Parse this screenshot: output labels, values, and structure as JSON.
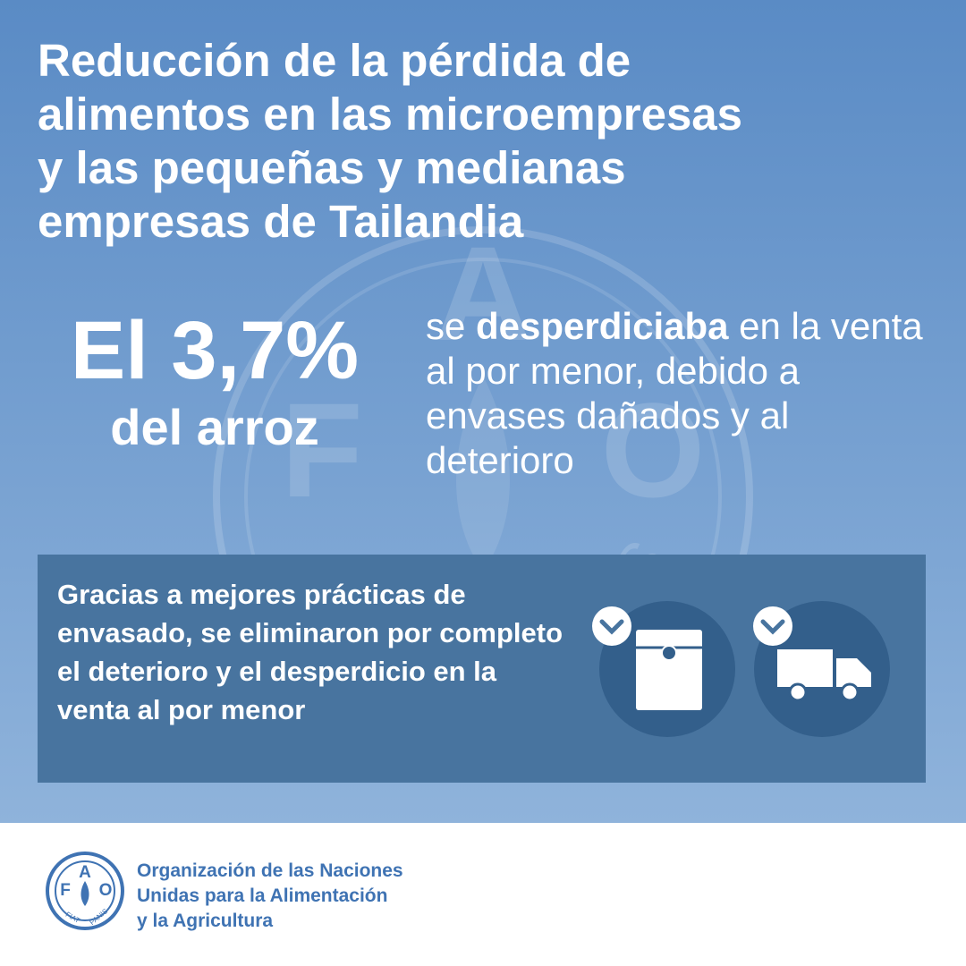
{
  "header": {
    "title_lines": [
      "Reducción de la pérdida de",
      "alimentos en las microempresas",
      "y las pequeñas y medianas",
      "empresas de Tailandia"
    ]
  },
  "stat": {
    "figure": "El 3,7%",
    "subject": "del arroz"
  },
  "description": {
    "before": "se",
    "bold": "desperdiciaba",
    "after": "en la venta al por menor, debido a envases dañados y al deterioro"
  },
  "result": {
    "text": "Gracias a mejores prácticas de envasado, se eliminaron por completo el deterioro y el desperdicio en la venta al por menor"
  },
  "logo": {
    "letters": [
      "F",
      "A",
      "O"
    ],
    "motto": [
      "FIAT",
      "PANIS"
    ]
  },
  "footer": {
    "organization_lines": [
      "Organización de las Naciones",
      "Unidas para la Alimentación",
      "y la Agricultura"
    ]
  }
}
